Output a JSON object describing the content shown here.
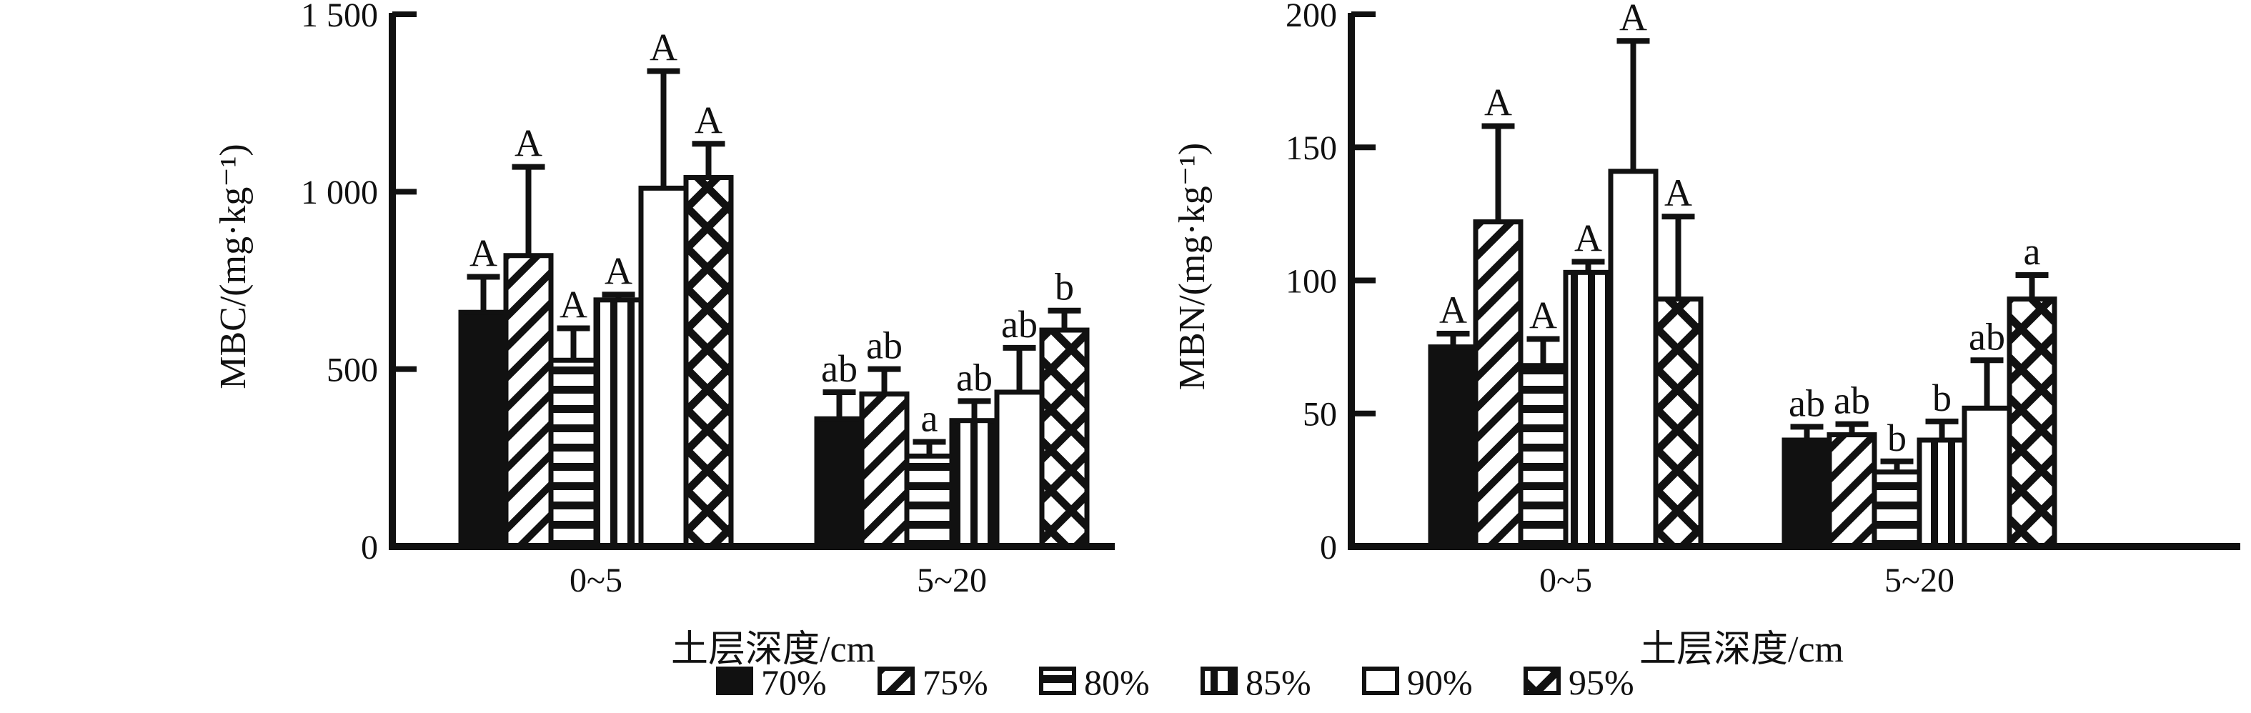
{
  "figure": {
    "background": "#ffffff",
    "ink": "#111111"
  },
  "chart_data": [
    {
      "type": "bar",
      "panel": "left",
      "title": "",
      "ylabel": "MBC/(mg·kg⁻¹)",
      "xlabel": "土层深度/cm",
      "ylim": [
        0,
        1500
      ],
      "grid": false,
      "legend_position": "shared-bottom",
      "yticks": [
        {
          "v": 0,
          "label": "0"
        },
        {
          "v": 500,
          "label": "500"
        },
        {
          "v": 1000,
          "label": "1 000"
        },
        {
          "v": 1500,
          "label": "1 500"
        }
      ],
      "categories": [
        "0~5",
        "5~20"
      ],
      "series": [
        {
          "name": "70%",
          "pattern": "solid",
          "values": [
            660,
            360
          ],
          "errors": [
            100,
            75
          ],
          "sig_letters": [
            "A",
            "ab"
          ]
        },
        {
          "name": "75%",
          "pattern": "diagonal",
          "values": [
            820,
            430
          ],
          "errors": [
            250,
            70
          ],
          "sig_letters": [
            "A",
            "ab"
          ]
        },
        {
          "name": "80%",
          "pattern": "horizontal",
          "values": [
            525,
            255
          ],
          "errors": [
            90,
            40
          ],
          "sig_letters": [
            "A",
            "a"
          ]
        },
        {
          "name": "85%",
          "pattern": "vertical",
          "values": [
            695,
            355
          ],
          "errors": [
            15,
            55
          ],
          "sig_letters": [
            "A",
            "ab"
          ]
        },
        {
          "name": "90%",
          "pattern": "none",
          "values": [
            1010,
            435
          ],
          "errors": [
            330,
            125
          ],
          "sig_letters": [
            "A",
            "ab"
          ]
        },
        {
          "name": "95%",
          "pattern": "crosshatch",
          "values": [
            1040,
            610
          ],
          "errors": [
            95,
            55
          ],
          "sig_letters": [
            "A",
            "b"
          ]
        }
      ]
    },
    {
      "type": "bar",
      "panel": "right",
      "title": "",
      "ylabel": "MBN/(mg·kg⁻¹)",
      "xlabel": "土层深度/cm",
      "ylim": [
        0,
        200
      ],
      "grid": false,
      "legend_position": "shared-bottom",
      "yticks": [
        {
          "v": 0,
          "label": "0"
        },
        {
          "v": 50,
          "label": "50"
        },
        {
          "v": 100,
          "label": "100"
        },
        {
          "v": 150,
          "label": "150"
        },
        {
          "v": 200,
          "label": "200"
        }
      ],
      "categories": [
        "0~5",
        "5~20"
      ],
      "series": [
        {
          "name": "70%",
          "pattern": "solid",
          "values": [
            75,
            40
          ],
          "errors": [
            5,
            5
          ],
          "sig_letters": [
            "A",
            "ab"
          ]
        },
        {
          "name": "75%",
          "pattern": "diagonal",
          "values": [
            122,
            42
          ],
          "errors": [
            36,
            4
          ],
          "sig_letters": [
            "A",
            "ab"
          ]
        },
        {
          "name": "80%",
          "pattern": "horizontal",
          "values": [
            68,
            28
          ],
          "errors": [
            10,
            4
          ],
          "sig_letters": [
            "A",
            "b"
          ]
        },
        {
          "name": "85%",
          "pattern": "vertical",
          "values": [
            103,
            40
          ],
          "errors": [
            4,
            7
          ],
          "sig_letters": [
            "A",
            "b"
          ]
        },
        {
          "name": "90%",
          "pattern": "none",
          "values": [
            141,
            52
          ],
          "errors": [
            49,
            18
          ],
          "sig_letters": [
            "A",
            "ab"
          ]
        },
        {
          "name": "95%",
          "pattern": "crosshatch",
          "values": [
            93,
            93
          ],
          "errors": [
            31,
            9
          ],
          "sig_letters": [
            "A",
            "a"
          ]
        }
      ]
    }
  ],
  "legend": {
    "items": [
      {
        "label": "70%",
        "pattern": "solid"
      },
      {
        "label": "75%",
        "pattern": "diagonal"
      },
      {
        "label": "80%",
        "pattern": "horizontal"
      },
      {
        "label": "85%",
        "pattern": "vertical"
      },
      {
        "label": "90%",
        "pattern": "none"
      },
      {
        "label": "95%",
        "pattern": "crosshatch"
      }
    ]
  }
}
